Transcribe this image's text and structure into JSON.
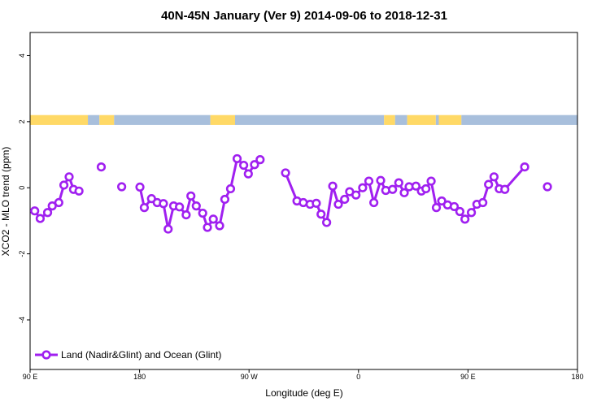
{
  "chart_data": {
    "type": "line",
    "title": "40N-45N January (Ver 9)   2014-09-06 to 2018-12-31",
    "xlabel": "Longitude (deg E)",
    "ylabel": "XCO2 - MLO trend (ppm)",
    "xlim": [
      90,
      540
    ],
    "ylim": [
      -5.5,
      4.7
    ],
    "x_ticks": [
      {
        "value": 90,
        "label": "90 E"
      },
      {
        "value": 180,
        "label": "180"
      },
      {
        "value": 270,
        "label": "90 W"
      },
      {
        "value": 360,
        "label": "0"
      },
      {
        "value": 450,
        "label": "90 E"
      },
      {
        "value": 540,
        "label": "180"
      }
    ],
    "y_ticks": [
      {
        "value": 4,
        "label": "4"
      },
      {
        "value": 2,
        "label": "2"
      },
      {
        "value": 0,
        "label": "0"
      },
      {
        "value": -2,
        "label": "-2"
      },
      {
        "value": -4,
        "label": "-4"
      }
    ],
    "colors": {
      "series": "#a020f0",
      "land": "#ffd966",
      "ocean": "#a8bfdc"
    },
    "surface_strip": {
      "y_range": [
        1.9,
        2.2
      ],
      "land_segments": [
        [
          90,
          137.5
        ],
        [
          147,
          159
        ],
        [
          238.2,
          258.5
        ],
        [
          381,
          390
        ],
        [
          400,
          423.5
        ],
        [
          426,
          444.5
        ]
      ],
      "ocean_segments": [
        [
          137.5,
          147
        ],
        [
          159,
          238.2
        ],
        [
          258.5,
          381
        ],
        [
          390,
          400
        ],
        [
          423.5,
          426
        ],
        [
          444.5,
          540
        ]
      ]
    },
    "series": [
      {
        "name": "Land (Nadir&Glint) and Ocean (Glint)",
        "points": [
          [
            93.8,
            -0.7
          ],
          [
            98.3,
            -0.93
          ],
          [
            104.4,
            -0.75
          ],
          [
            108.2,
            -0.55
          ],
          [
            113.6,
            -0.45
          ],
          [
            117.8,
            0.08
          ],
          [
            122.1,
            0.33
          ],
          [
            125.7,
            -0.05
          ],
          [
            130.2,
            -0.1
          ],
          [
            148.5,
            0.63
          ],
          [
            165.3,
            0.03
          ],
          [
            180.3,
            0.02
          ],
          [
            183.9,
            -0.6
          ],
          [
            189.8,
            -0.33
          ],
          [
            194.5,
            -0.45
          ],
          [
            199.6,
            -0.48
          ],
          [
            203.5,
            -1.25
          ],
          [
            208.0,
            -0.55
          ],
          [
            212.8,
            -0.58
          ],
          [
            218.3,
            -0.82
          ],
          [
            222.2,
            -0.25
          ],
          [
            226.6,
            -0.55
          ],
          [
            231.9,
            -0.77
          ],
          [
            235.8,
            -1.2
          ],
          [
            240.6,
            -0.95
          ],
          [
            245.8,
            -1.15
          ],
          [
            250.1,
            -0.35
          ],
          [
            254.8,
            -0.03
          ],
          [
            260.2,
            0.88
          ],
          [
            265.6,
            0.68
          ],
          [
            269.4,
            0.42
          ],
          [
            274.5,
            0.7
          ],
          [
            279.1,
            0.85
          ],
          [
            300.0,
            0.45
          ],
          [
            309.4,
            -0.4
          ],
          [
            314.6,
            -0.45
          ],
          [
            320.2,
            -0.5
          ],
          [
            325.3,
            -0.47
          ],
          [
            329.2,
            -0.8
          ],
          [
            333.8,
            -1.05
          ],
          [
            338.8,
            0.05
          ],
          [
            343.4,
            -0.5
          ],
          [
            348.6,
            -0.35
          ],
          [
            352.7,
            -0.12
          ],
          [
            357.9,
            -0.22
          ],
          [
            363.4,
            0.0
          ],
          [
            368.5,
            0.2
          ],
          [
            372.6,
            -0.45
          ],
          [
            378.2,
            0.22
          ],
          [
            382.4,
            -0.08
          ],
          [
            388.0,
            -0.05
          ],
          [
            393.1,
            0.15
          ],
          [
            397.6,
            -0.15
          ],
          [
            401.6,
            0.03
          ],
          [
            407.2,
            0.05
          ],
          [
            411.7,
            -0.1
          ],
          [
            415.4,
            -0.03
          ],
          [
            419.7,
            0.2
          ],
          [
            424.0,
            -0.6
          ],
          [
            428.4,
            -0.4
          ],
          [
            433.2,
            -0.52
          ],
          [
            438.7,
            -0.57
          ],
          [
            443.3,
            -0.72
          ],
          [
            447.5,
            -0.95
          ],
          [
            452.8,
            -0.75
          ],
          [
            457.3,
            -0.5
          ],
          [
            462.2,
            -0.45
          ],
          [
            466.9,
            0.1
          ],
          [
            471.4,
            0.33
          ],
          [
            475.7,
            -0.03
          ],
          [
            480.3,
            -0.05
          ],
          [
            496.6,
            0.63
          ],
          [
            515.3,
            0.03
          ]
        ]
      }
    ],
    "series_segments": [
      [
        0,
        9
      ],
      [
        9,
        10
      ],
      [
        10,
        11
      ],
      [
        11,
        32
      ],
      [
        32,
        33
      ],
      [
        33,
        72
      ],
      [
        72,
        73
      ],
      [
        73,
        74
      ]
    ],
    "legend": {
      "position": "bottom-left",
      "entries": [
        "Land (Nadir&Glint) and Ocean (Glint)"
      ]
    },
    "grid": false
  }
}
